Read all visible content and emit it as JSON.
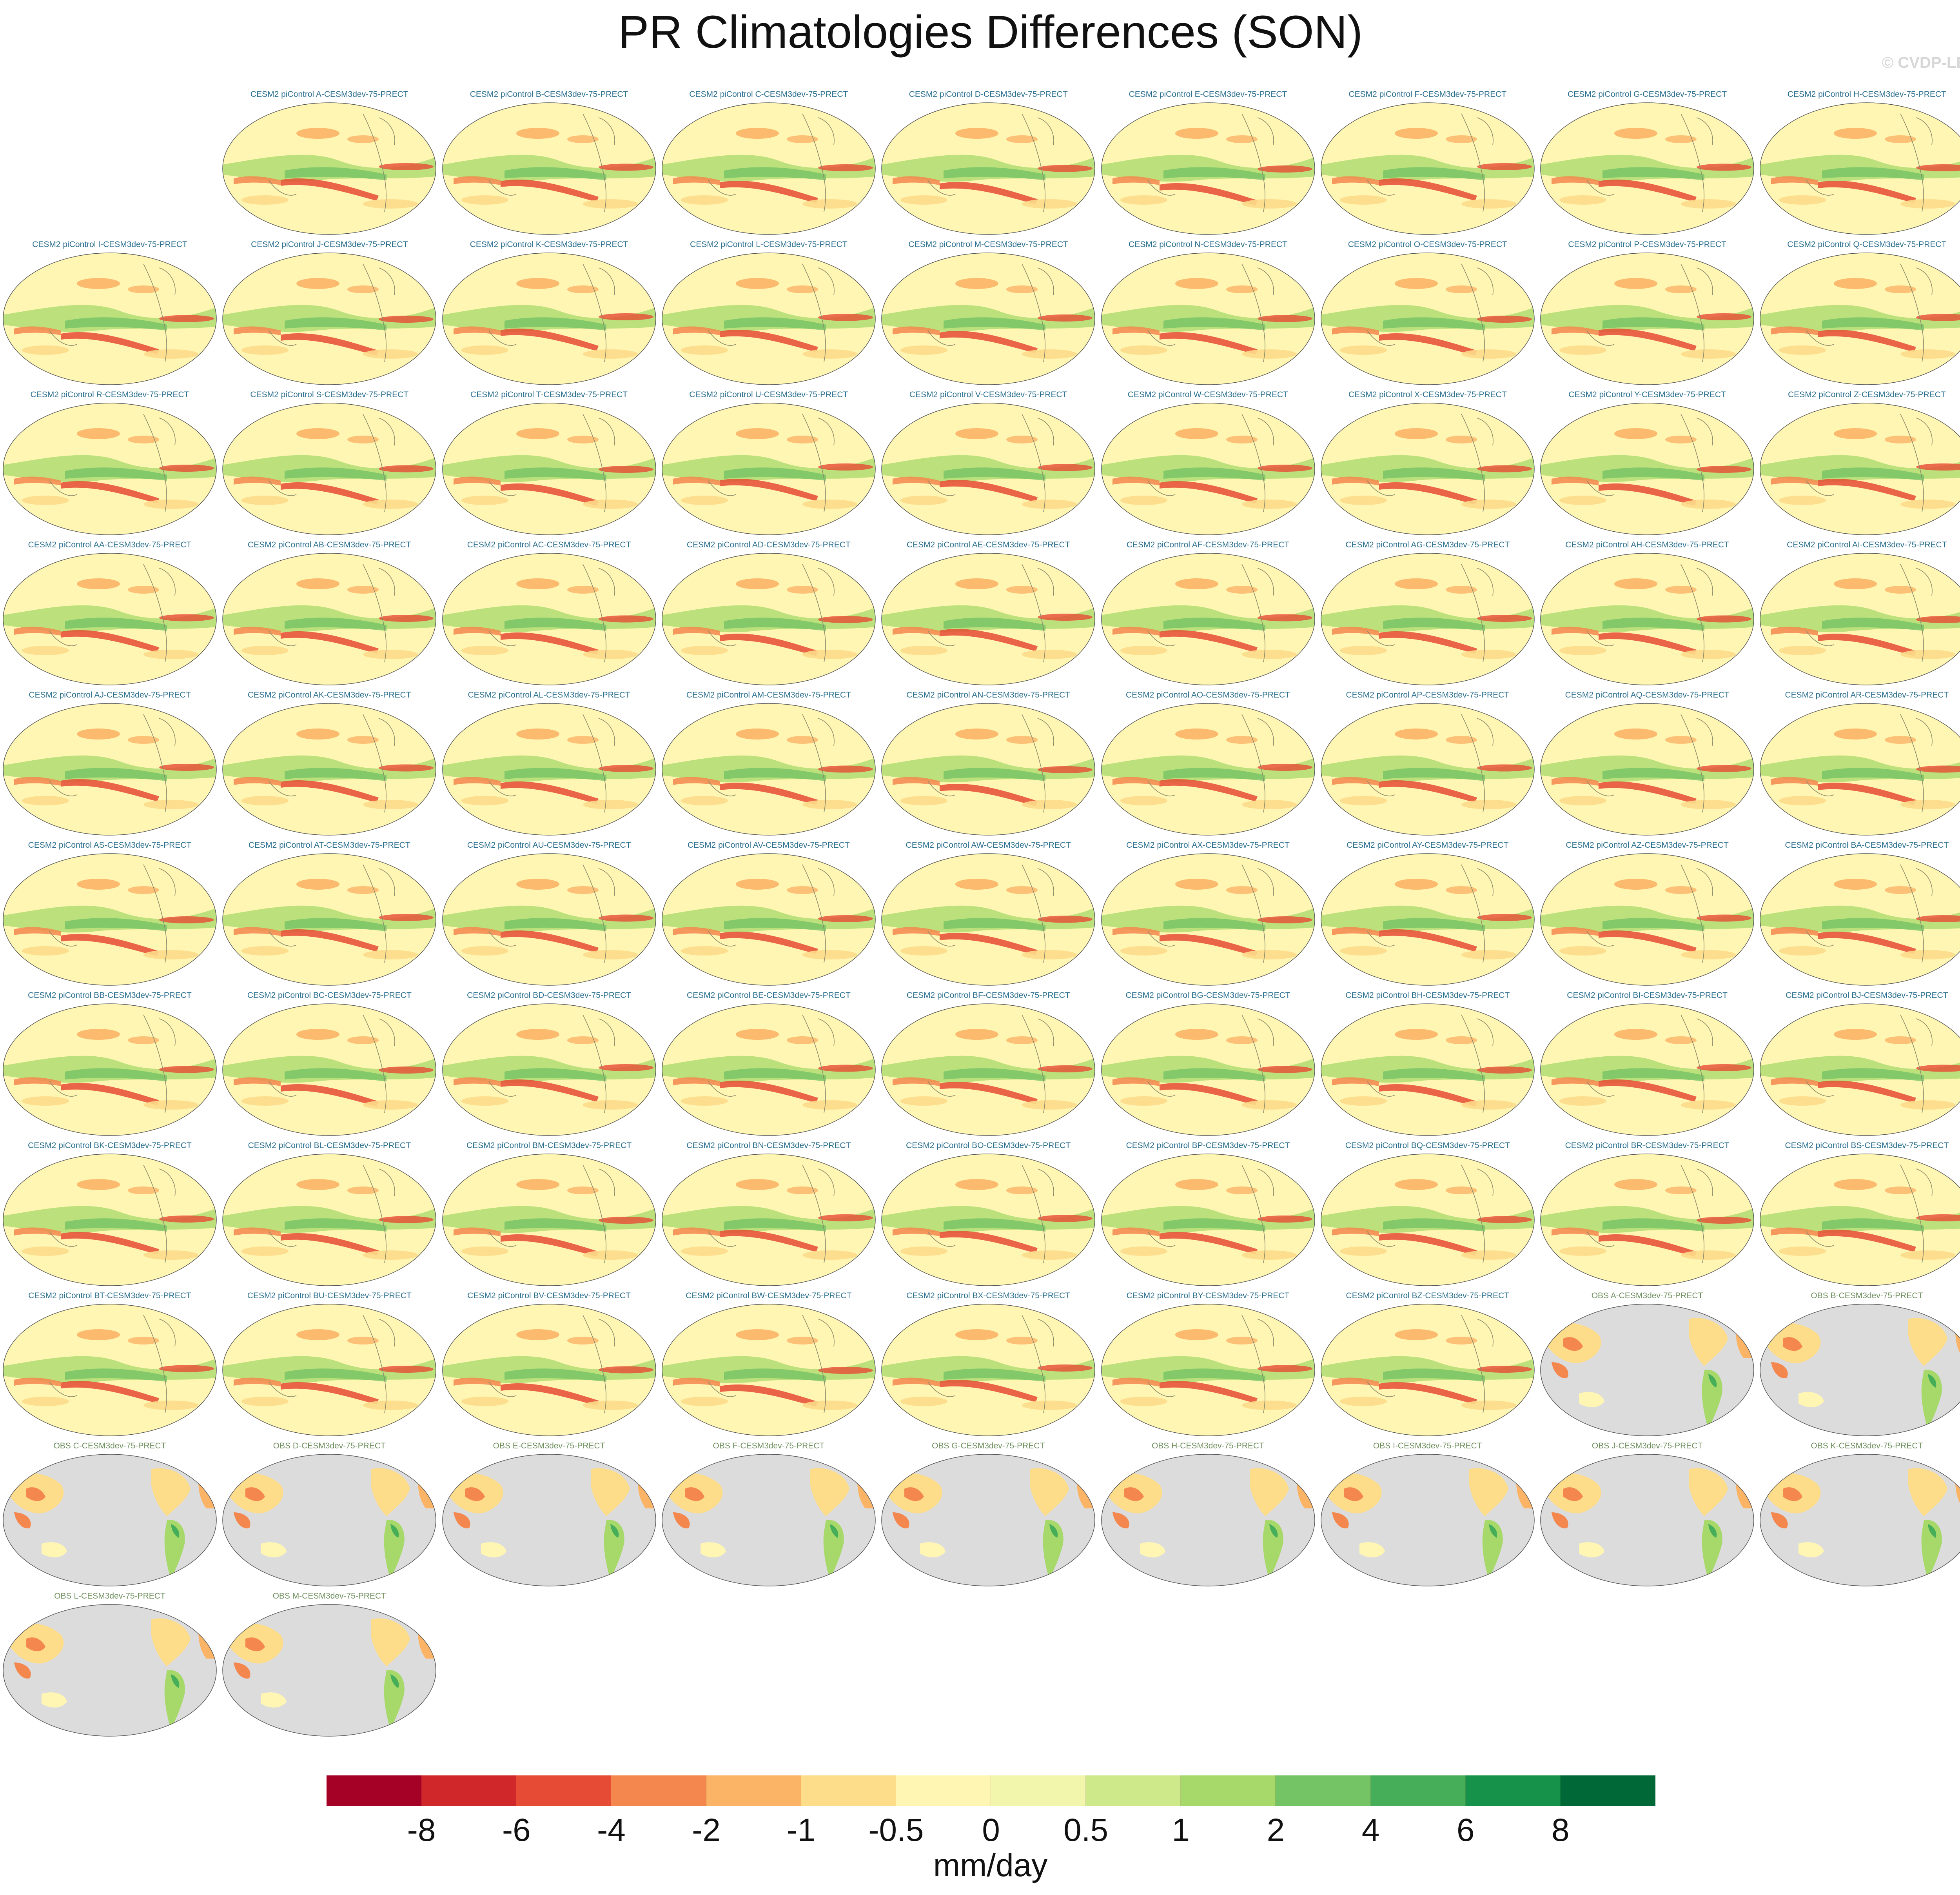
{
  "title": "PR Climatologies Differences (SON)",
  "watermark": "© CVDP-LE",
  "colorbar": {
    "units": "mm/day",
    "labels": [
      "-8",
      "-6",
      "-4",
      "-2",
      "-1",
      "-0.5",
      "0",
      "0.5",
      "1",
      "2",
      "4",
      "6",
      "8"
    ],
    "colors": [
      "#a50026",
      "#d0282a",
      "#e64b35",
      "#f4874e",
      "#fbb466",
      "#fddc8a",
      "#fff6b3",
      "#f2f6ad",
      "#cde98a",
      "#a6d96a",
      "#74c365",
      "#46ad58",
      "#17924a",
      "#006837"
    ]
  },
  "panels": {
    "model_titles": [
      "CESM2 piControl A-CESM3dev-75-PRECT",
      "CESM2 piControl B-CESM3dev-75-PRECT",
      "CESM2 piControl C-CESM3dev-75-PRECT",
      "CESM2 piControl D-CESM3dev-75-PRECT",
      "CESM2 piControl E-CESM3dev-75-PRECT",
      "CESM2 piControl F-CESM3dev-75-PRECT",
      "CESM2 piControl G-CESM3dev-75-PRECT",
      "CESM2 piControl H-CESM3dev-75-PRECT",
      "CESM2 piControl I-CESM3dev-75-PRECT",
      "CESM2 piControl J-CESM3dev-75-PRECT",
      "CESM2 piControl K-CESM3dev-75-PRECT",
      "CESM2 piControl L-CESM3dev-75-PRECT",
      "CESM2 piControl M-CESM3dev-75-PRECT",
      "CESM2 piControl N-CESM3dev-75-PRECT",
      "CESM2 piControl O-CESM3dev-75-PRECT",
      "CESM2 piControl P-CESM3dev-75-PRECT",
      "CESM2 piControl Q-CESM3dev-75-PRECT",
      "CESM2 piControl R-CESM3dev-75-PRECT",
      "CESM2 piControl S-CESM3dev-75-PRECT",
      "CESM2 piControl T-CESM3dev-75-PRECT",
      "CESM2 piControl U-CESM3dev-75-PRECT",
      "CESM2 piControl V-CESM3dev-75-PRECT",
      "CESM2 piControl W-CESM3dev-75-PRECT",
      "CESM2 piControl X-CESM3dev-75-PRECT",
      "CESM2 piControl Y-CESM3dev-75-PRECT",
      "CESM2 piControl Z-CESM3dev-75-PRECT",
      "CESM2 piControl AA-CESM3dev-75-PRECT",
      "CESM2 piControl AB-CESM3dev-75-PRECT",
      "CESM2 piControl AC-CESM3dev-75-PRECT",
      "CESM2 piControl AD-CESM3dev-75-PRECT",
      "CESM2 piControl AE-CESM3dev-75-PRECT",
      "CESM2 piControl AF-CESM3dev-75-PRECT",
      "CESM2 piControl AG-CESM3dev-75-PRECT",
      "CESM2 piControl AH-CESM3dev-75-PRECT",
      "CESM2 piControl AI-CESM3dev-75-PRECT",
      "CESM2 piControl AJ-CESM3dev-75-PRECT",
      "CESM2 piControl AK-CESM3dev-75-PRECT",
      "CESM2 piControl AL-CESM3dev-75-PRECT",
      "CESM2 piControl AM-CESM3dev-75-PRECT",
      "CESM2 piControl AN-CESM3dev-75-PRECT",
      "CESM2 piControl AO-CESM3dev-75-PRECT",
      "CESM2 piControl AP-CESM3dev-75-PRECT",
      "CESM2 piControl AQ-CESM3dev-75-PRECT",
      "CESM2 piControl AR-CESM3dev-75-PRECT",
      "CESM2 piControl AS-CESM3dev-75-PRECT",
      "CESM2 piControl AT-CESM3dev-75-PRECT",
      "CESM2 piControl AU-CESM3dev-75-PRECT",
      "CESM2 piControl AV-CESM3dev-75-PRECT",
      "CESM2 piControl AW-CESM3dev-75-PRECT",
      "CESM2 piControl AX-CESM3dev-75-PRECT",
      "CESM2 piControl AY-CESM3dev-75-PRECT",
      "CESM2 piControl AZ-CESM3dev-75-PRECT",
      "CESM2 piControl BA-CESM3dev-75-PRECT",
      "CESM2 piControl BB-CESM3dev-75-PRECT",
      "CESM2 piControl BC-CESM3dev-75-PRECT",
      "CESM2 piControl BD-CESM3dev-75-PRECT",
      "CESM2 piControl BE-CESM3dev-75-PRECT",
      "CESM2 piControl BF-CESM3dev-75-PRECT",
      "CESM2 piControl BG-CESM3dev-75-PRECT",
      "CESM2 piControl BH-CESM3dev-75-PRECT",
      "CESM2 piControl BI-CESM3dev-75-PRECT",
      "CESM2 piControl BJ-CESM3dev-75-PRECT",
      "CESM2 piControl BK-CESM3dev-75-PRECT",
      "CESM2 piControl BL-CESM3dev-75-PRECT",
      "CESM2 piControl BM-CESM3dev-75-PRECT",
      "CESM2 piControl BN-CESM3dev-75-PRECT",
      "CESM2 piControl BO-CESM3dev-75-PRECT",
      "CESM2 piControl BP-CESM3dev-75-PRECT",
      "CESM2 piControl BQ-CESM3dev-75-PRECT",
      "CESM2 piControl BR-CESM3dev-75-PRECT",
      "CESM2 piControl BS-CESM3dev-75-PRECT",
      "CESM2 piControl BT-CESM3dev-75-PRECT",
      "CESM2 piControl BU-CESM3dev-75-PRECT",
      "CESM2 piControl BV-CESM3dev-75-PRECT",
      "CESM2 piControl BW-CESM3dev-75-PRECT",
      "CESM2 piControl BX-CESM3dev-75-PRECT",
      "CESM2 piControl BY-CESM3dev-75-PRECT",
      "CESM2 piControl BZ-CESM3dev-75-PRECT"
    ],
    "obs_titles": [
      "OBS A-CESM3dev-75-PRECT",
      "OBS B-CESM3dev-75-PRECT",
      "OBS C-CESM3dev-75-PRECT",
      "OBS D-CESM3dev-75-PRECT",
      "OBS E-CESM3dev-75-PRECT",
      "OBS F-CESM3dev-75-PRECT",
      "OBS G-CESM3dev-75-PRECT",
      "OBS H-CESM3dev-75-PRECT",
      "OBS I-CESM3dev-75-PRECT",
      "OBS J-CESM3dev-75-PRECT",
      "OBS K-CESM3dev-75-PRECT",
      "OBS L-CESM3dev-75-PRECT",
      "OBS M-CESM3dev-75-PRECT"
    ]
  }
}
